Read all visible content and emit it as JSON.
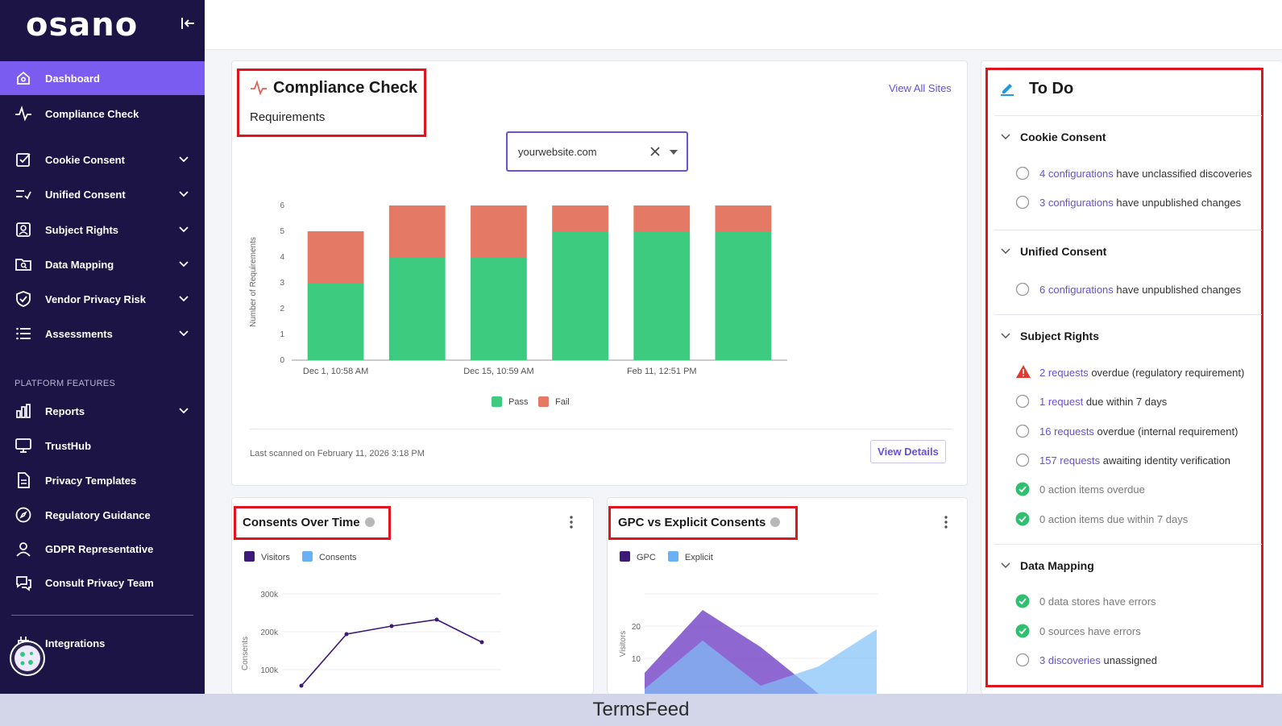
{
  "sidebar": {
    "logo": "osano",
    "items": [
      {
        "label": "Dashboard"
      },
      {
        "label": "Compliance Check"
      },
      {
        "label": "Cookie Consent"
      },
      {
        "label": "Unified Consent"
      },
      {
        "label": "Subject Rights"
      },
      {
        "label": "Data Mapping"
      },
      {
        "label": "Vendor Privacy Risk"
      },
      {
        "label": "Assessments"
      }
    ],
    "section_label": "PLATFORM FEATURES",
    "platform_items": [
      {
        "label": "Reports"
      },
      {
        "label": "TrustHub"
      },
      {
        "label": "Privacy Templates"
      },
      {
        "label": "Regulatory Guidance"
      },
      {
        "label": "GDPR Representative"
      },
      {
        "label": "Consult Privacy Team"
      }
    ],
    "integrations": "Integrations",
    "active_color": "#7b5cf0",
    "bg_color": "#1b1444"
  },
  "compliance": {
    "title": "Compliance Check",
    "subtitle": "Requirements",
    "view_all": "View All Sites",
    "site_value": "yourwebsite.com",
    "last_scanned": "Last scanned on February 11, 2026 3:18 PM",
    "view_details": "View Details"
  },
  "chart_data": [
    {
      "type": "bar",
      "stacked": true,
      "ylabel": "Number of Requirements",
      "ylim": [
        0,
        6
      ],
      "yticks": [
        "0",
        "1",
        "2",
        "3",
        "4",
        "5",
        "6"
      ],
      "xtick_labels": [
        "Dec 1, 10:58 AM",
        "Dec 15, 10:59 AM",
        "Feb 11, 12:51 PM"
      ],
      "series": [
        {
          "name": "Pass",
          "color": "#3ccb7f",
          "values": [
            3,
            4,
            4,
            5,
            5,
            5
          ]
        },
        {
          "name": "Fail",
          "color": "#e47a66",
          "values": [
            2,
            2,
            2,
            1,
            1,
            1
          ]
        }
      ]
    },
    {
      "type": "line",
      "title": "Consents Over Time",
      "ylabel": "Consents",
      "yticks": [
        "100k",
        "200k",
        "300k"
      ],
      "series": [
        {
          "name": "Visitors",
          "color": "#3d1a78"
        },
        {
          "name": "Consents",
          "color": "#6ab0f5"
        }
      ]
    },
    {
      "type": "area",
      "title": "GPC vs Explicit Consents",
      "ylabel": "Visitors",
      "yticks": [
        "10",
        "20"
      ],
      "series": [
        {
          "name": "GPC",
          "color": "#3d1a78"
        },
        {
          "name": "Explicit",
          "color": "#6ab0f5"
        }
      ]
    }
  ],
  "todo": {
    "title": "To Do",
    "sections": [
      {
        "title": "Cookie Consent",
        "items": [
          {
            "link": "4 configurations",
            "text": " have unclassified discoveries"
          },
          {
            "link": "3 configurations",
            "text": " have unpublished changes"
          }
        ]
      },
      {
        "title": "Unified Consent",
        "items": [
          {
            "link": "6 configurations",
            "text": " have unpublished changes"
          }
        ]
      },
      {
        "title": "Subject Rights",
        "items": [
          {
            "link": "2 requests",
            "text": " overdue (regulatory requirement)"
          },
          {
            "link": "1 request",
            "text": " due within 7 days"
          },
          {
            "link": "16 requests",
            "text": " overdue (internal requirement)"
          },
          {
            "link": "157 requests",
            "text": " awaiting identity verification"
          },
          {
            "text": "0 action items overdue"
          },
          {
            "text": "0 action items due within 7 days"
          }
        ]
      },
      {
        "title": "Data Mapping",
        "items": [
          {
            "text": "0 data stores have errors"
          },
          {
            "text": "0 sources have errors"
          },
          {
            "link": "3 discoveries",
            "text": " unassigned"
          }
        ]
      }
    ]
  },
  "footer": "TermsFeed"
}
